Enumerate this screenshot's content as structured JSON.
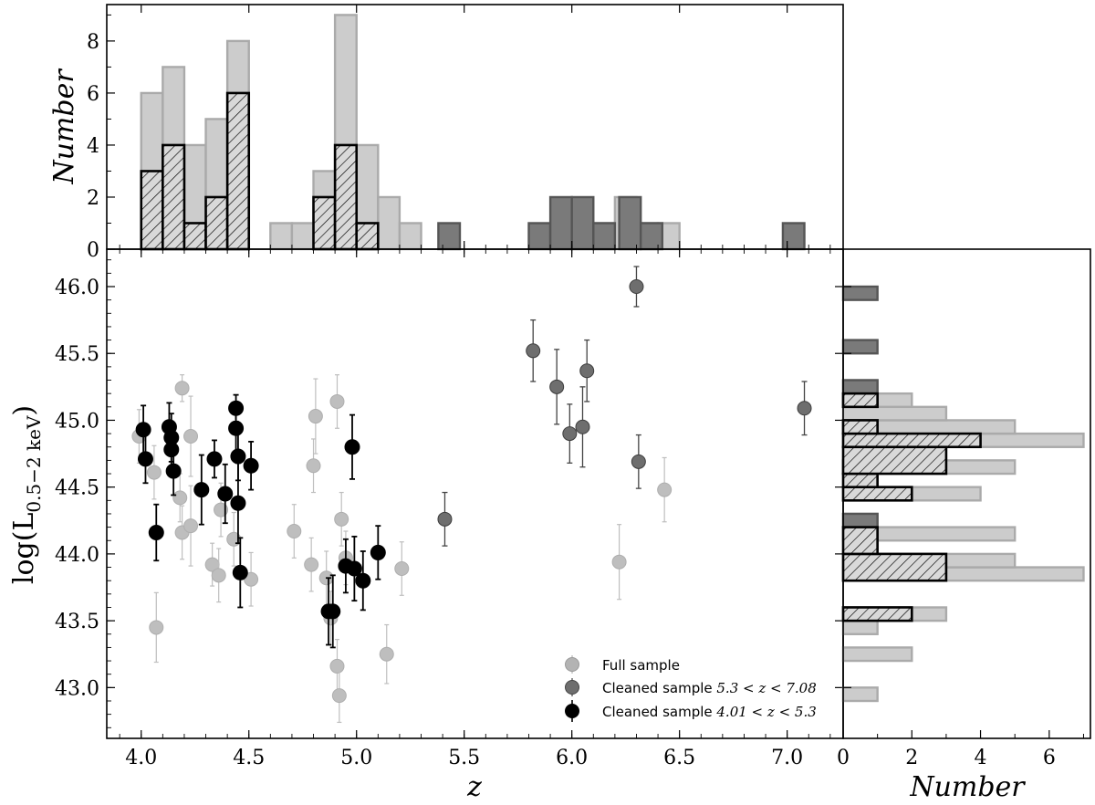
{
  "chart_data": [
    {
      "type": "scatter",
      "name": "main",
      "xlabel": "z",
      "ylabel": "log(L0.5-2 keV)",
      "ylabel_parts": {
        "base": "log(L",
        "sub": "0.5−2 keV",
        "close": ")"
      },
      "xlim": [
        3.84,
        7.26
      ],
      "ylim": [
        42.62,
        46.28
      ],
      "xticks": [
        4.0,
        4.5,
        5.0,
        5.5,
        6.0,
        6.5,
        7.0
      ],
      "xtick_labels": [
        "4.0",
        "4.5",
        "5.0",
        "5.5",
        "6.0",
        "6.5",
        "7.0"
      ],
      "yticks": [
        43.0,
        43.5,
        44.0,
        44.5,
        45.0,
        45.5,
        46.0
      ],
      "ytick_labels": [
        "43.0",
        "43.5",
        "44.0",
        "44.5",
        "45.0",
        "45.5",
        "46.0"
      ],
      "legend_position": "lower-right",
      "series": [
        {
          "name": "Full sample",
          "label": "Full sample",
          "color": "#b3b3b3",
          "points": [
            {
              "x": 3.99,
              "y": 44.88,
              "err": 0.2
            },
            {
              "x": 4.06,
              "y": 44.61,
              "err": 0.2
            },
            {
              "x": 4.07,
              "y": 43.45,
              "err": 0.26
            },
            {
              "x": 4.18,
              "y": 44.42,
              "err": 0.18
            },
            {
              "x": 4.19,
              "y": 44.16,
              "err": 0.2
            },
            {
              "x": 4.19,
              "y": 45.24,
              "err": 0.1
            },
            {
              "x": 4.23,
              "y": 44.88,
              "err": 0.3
            },
            {
              "x": 4.23,
              "y": 44.21,
              "err": 0.3
            },
            {
              "x": 4.33,
              "y": 43.92,
              "err": 0.16
            },
            {
              "x": 4.36,
              "y": 43.84,
              "err": 0.2
            },
            {
              "x": 4.37,
              "y": 44.33,
              "err": 0.2
            },
            {
              "x": 4.43,
              "y": 44.11,
              "err": 0.2
            },
            {
              "x": 4.51,
              "y": 43.81,
              "err": 0.2
            },
            {
              "x": 4.71,
              "y": 44.17,
              "err": 0.2
            },
            {
              "x": 4.79,
              "y": 43.92,
              "err": 0.2
            },
            {
              "x": 4.8,
              "y": 44.66,
              "err": 0.2
            },
            {
              "x": 4.81,
              "y": 45.03,
              "err": 0.28
            },
            {
              "x": 4.86,
              "y": 43.82,
              "err": 0.2
            },
            {
              "x": 4.88,
              "y": 43.52,
              "err": 0.2
            },
            {
              "x": 4.91,
              "y": 45.14,
              "err": 0.2
            },
            {
              "x": 4.91,
              "y": 43.16,
              "err": 0.2
            },
            {
              "x": 4.92,
              "y": 42.94,
              "err": 0.2
            },
            {
              "x": 4.93,
              "y": 44.26,
              "err": 0.2
            },
            {
              "x": 4.95,
              "y": 43.97,
              "err": 0.2
            },
            {
              "x": 5.14,
              "y": 43.25,
              "err": 0.22
            },
            {
              "x": 5.21,
              "y": 43.89,
              "err": 0.2
            },
            {
              "x": 6.22,
              "y": 43.94,
              "err": 0.28
            },
            {
              "x": 6.43,
              "y": 44.48,
              "err": 0.24
            }
          ]
        },
        {
          "name": "Cleaned sample 5.3 < z < 7.08",
          "label": "Cleaned sample 5.3 < z < 7.08",
          "label_parts": {
            "text": "Cleaned sample ",
            "math": "5.3 < z < 7.08"
          },
          "color": "#6e6e6e",
          "points": [
            {
              "x": 5.41,
              "y": 44.26,
              "err": 0.2
            },
            {
              "x": 5.82,
              "y": 45.52,
              "err": 0.23
            },
            {
              "x": 5.93,
              "y": 45.25,
              "err": 0.28
            },
            {
              "x": 5.99,
              "y": 44.9,
              "err": 0.22
            },
            {
              "x": 6.05,
              "y": 44.95,
              "err": 0.3
            },
            {
              "x": 6.07,
              "y": 45.37,
              "err": 0.23
            },
            {
              "x": 6.3,
              "y": 46.0,
              "err": 0.15
            },
            {
              "x": 6.31,
              "y": 44.69,
              "err": 0.2
            },
            {
              "x": 7.08,
              "y": 45.09,
              "err": 0.2
            }
          ]
        },
        {
          "name": "Cleaned sample 4.01 < z < 5.3",
          "label": "Cleaned sample 4.01 < z < 5.3",
          "label_parts": {
            "text": "Cleaned sample ",
            "math": "4.01 < z < 5.3"
          },
          "color": "#000000",
          "points": [
            {
              "x": 4.01,
              "y": 44.93,
              "err": 0.18
            },
            {
              "x": 4.02,
              "y": 44.71,
              "err": 0.18
            },
            {
              "x": 4.07,
              "y": 44.16,
              "err": 0.21
            },
            {
              "x": 4.13,
              "y": 44.95,
              "err": 0.18
            },
            {
              "x": 4.14,
              "y": 44.87,
              "err": 0.18
            },
            {
              "x": 4.14,
              "y": 44.78,
              "err": 0.18
            },
            {
              "x": 4.15,
              "y": 44.62,
              "err": 0.18
            },
            {
              "x": 4.28,
              "y": 44.48,
              "err": 0.26
            },
            {
              "x": 4.34,
              "y": 44.71,
              "err": 0.14
            },
            {
              "x": 4.39,
              "y": 44.45,
              "err": 0.22
            },
            {
              "x": 4.44,
              "y": 45.09,
              "err": 0.1
            },
            {
              "x": 4.44,
              "y": 44.94,
              "err": 0.18
            },
            {
              "x": 4.45,
              "y": 44.73,
              "err": 0.18
            },
            {
              "x": 4.45,
              "y": 44.38,
              "err": 0.3
            },
            {
              "x": 4.46,
              "y": 43.86,
              "err": 0.26
            },
            {
              "x": 4.51,
              "y": 44.66,
              "err": 0.18
            },
            {
              "x": 4.87,
              "y": 43.57,
              "err": 0.25
            },
            {
              "x": 4.89,
              "y": 43.57,
              "err": 0.27
            },
            {
              "x": 4.95,
              "y": 43.91,
              "err": 0.2
            },
            {
              "x": 4.98,
              "y": 44.8,
              "err": 0.24
            },
            {
              "x": 4.99,
              "y": 43.89,
              "err": 0.24
            },
            {
              "x": 5.03,
              "y": 43.8,
              "err": 0.22
            },
            {
              "x": 5.1,
              "y": 44.01,
              "err": 0.2
            }
          ]
        }
      ]
    },
    {
      "type": "histogram",
      "name": "top",
      "ylabel": "Number",
      "ylim": [
        0,
        9.4
      ],
      "yticks": [
        0,
        2,
        4,
        6,
        8
      ],
      "ytick_labels": [
        "0",
        "2",
        "4",
        "6",
        "8"
      ],
      "series": [
        {
          "name": "Full sample",
          "color": "#cccccc",
          "edge": "#aaaaaa",
          "bins": [
            {
              "x0": 4.0,
              "x1": 4.1,
              "count": 6
            },
            {
              "x0": 4.1,
              "x1": 4.2,
              "count": 7
            },
            {
              "x0": 4.2,
              "x1": 4.3,
              "count": 4
            },
            {
              "x0": 4.3,
              "x1": 4.4,
              "count": 5
            },
            {
              "x0": 4.4,
              "x1": 4.5,
              "count": 8
            },
            {
              "x0": 4.5,
              "x1": 4.6,
              "count": 0
            },
            {
              "x0": 4.6,
              "x1": 4.7,
              "count": 1
            },
            {
              "x0": 4.7,
              "x1": 4.8,
              "count": 1
            },
            {
              "x0": 4.8,
              "x1": 4.9,
              "count": 3
            },
            {
              "x0": 4.9,
              "x1": 5.0,
              "count": 9
            },
            {
              "x0": 5.0,
              "x1": 5.1,
              "count": 4
            },
            {
              "x0": 5.1,
              "x1": 5.2,
              "count": 2
            },
            {
              "x0": 5.2,
              "x1": 5.3,
              "count": 1
            },
            {
              "x0": 6.1,
              "x1": 6.2,
              "count": 1
            },
            {
              "x0": 6.2,
              "x1": 6.3,
              "count": 2
            },
            {
              "x0": 6.3,
              "x1": 6.4,
              "count": 1
            },
            {
              "x0": 6.4,
              "x1": 6.5,
              "count": 1
            }
          ]
        },
        {
          "name": "Cleaned sample 5.3 < z < 7.08",
          "color": "#7a7a7a",
          "edge": "#555555",
          "bins": [
            {
              "x0": 5.38,
              "x1": 5.48,
              "count": 1
            },
            {
              "x0": 5.8,
              "x1": 5.9,
              "count": 1
            },
            {
              "x0": 5.9,
              "x1": 6.0,
              "count": 2
            },
            {
              "x0": 6.0,
              "x1": 6.1,
              "count": 2
            },
            {
              "x0": 6.1,
              "x1": 6.2,
              "count": 1
            },
            {
              "x0": 6.22,
              "x1": 6.32,
              "count": 2
            },
            {
              "x0": 6.32,
              "x1": 6.42,
              "count": 1
            },
            {
              "x0": 6.98,
              "x1": 7.08,
              "count": 1
            }
          ]
        },
        {
          "name": "Cleaned sample 4.01 < z < 5.3",
          "color": "#d9d9d9",
          "edge": "#000000",
          "hatch": true,
          "bins": [
            {
              "x0": 4.0,
              "x1": 4.1,
              "count": 3
            },
            {
              "x0": 4.1,
              "x1": 4.2,
              "count": 4
            },
            {
              "x0": 4.2,
              "x1": 4.3,
              "count": 1
            },
            {
              "x0": 4.3,
              "x1": 4.4,
              "count": 2
            },
            {
              "x0": 4.4,
              "x1": 4.5,
              "count": 6
            },
            {
              "x0": 4.8,
              "x1": 4.9,
              "count": 2
            },
            {
              "x0": 4.9,
              "x1": 5.0,
              "count": 4
            },
            {
              "x0": 5.0,
              "x1": 5.1,
              "count": 1
            }
          ]
        }
      ]
    },
    {
      "type": "histogram",
      "name": "right",
      "orientation": "horizontal",
      "xlabel": "Number",
      "xlim": [
        0,
        7.2
      ],
      "xticks": [
        0,
        2,
        4,
        6
      ],
      "xtick_labels": [
        "0",
        "2",
        "4",
        "6"
      ],
      "series": [
        {
          "name": "Full sample",
          "color": "#cccccc",
          "edge": "#aaaaaa",
          "bins": [
            {
              "y0": 42.9,
              "y1": 43.0,
              "count": 1
            },
            {
              "y0": 43.2,
              "y1": 43.3,
              "count": 2
            },
            {
              "y0": 43.4,
              "y1": 43.5,
              "count": 1
            },
            {
              "y0": 43.5,
              "y1": 43.6,
              "count": 3
            },
            {
              "y0": 43.8,
              "y1": 43.9,
              "count": 7
            },
            {
              "y0": 43.9,
              "y1": 44.0,
              "count": 5
            },
            {
              "y0": 44.1,
              "y1": 44.2,
              "count": 5
            },
            {
              "y0": 44.2,
              "y1": 44.3,
              "count": 1
            },
            {
              "y0": 44.4,
              "y1": 44.5,
              "count": 4
            },
            {
              "y0": 44.6,
              "y1": 44.7,
              "count": 5
            },
            {
              "y0": 44.8,
              "y1": 44.9,
              "count": 7
            },
            {
              "y0": 44.9,
              "y1": 45.0,
              "count": 5
            },
            {
              "y0": 45.0,
              "y1": 45.1,
              "count": 3
            },
            {
              "y0": 45.1,
              "y1": 45.2,
              "count": 2
            },
            {
              "y0": 45.2,
              "y1": 45.3,
              "count": 1
            }
          ]
        },
        {
          "name": "Cleaned sample 5.3 < z < 7.08",
          "color": "#7a7a7a",
          "edge": "#555555",
          "bins": [
            {
              "y0": 44.2,
              "y1": 44.3,
              "count": 1
            },
            {
              "y0": 44.6,
              "y1": 44.7,
              "count": 1
            },
            {
              "y0": 44.9,
              "y1": 45.0,
              "count": 1
            },
            {
              "y0": 45.1,
              "y1": 45.2,
              "count": 1
            },
            {
              "y0": 45.2,
              "y1": 45.3,
              "count": 1
            },
            {
              "y0": 45.5,
              "y1": 45.6,
              "count": 1
            },
            {
              "y0": 45.9,
              "y1": 46.0,
              "count": 1
            }
          ]
        },
        {
          "name": "Cleaned sample 4.01 < z < 5.3",
          "color": "#d9d9d9",
          "edge": "#000000",
          "hatch": true,
          "bins": [
            {
              "y0": 43.5,
              "y1": 43.6,
              "count": 2
            },
            {
              "y0": 43.8,
              "y1": 44.0,
              "count": 3
            },
            {
              "y0": 44.0,
              "y1": 44.2,
              "count": 1
            },
            {
              "y0": 44.4,
              "y1": 44.5,
              "count": 2
            },
            {
              "y0": 44.5,
              "y1": 44.6,
              "count": 1
            },
            {
              "y0": 44.6,
              "y1": 44.8,
              "count": 3
            },
            {
              "y0": 44.8,
              "y1": 44.9,
              "count": 4
            },
            {
              "y0": 44.9,
              "y1": 45.0,
              "count": 1
            },
            {
              "y0": 45.0,
              "y1": 45.1,
              "count": 0
            },
            {
              "y0": 45.1,
              "y1": 45.2,
              "count": 1
            }
          ]
        }
      ]
    }
  ]
}
